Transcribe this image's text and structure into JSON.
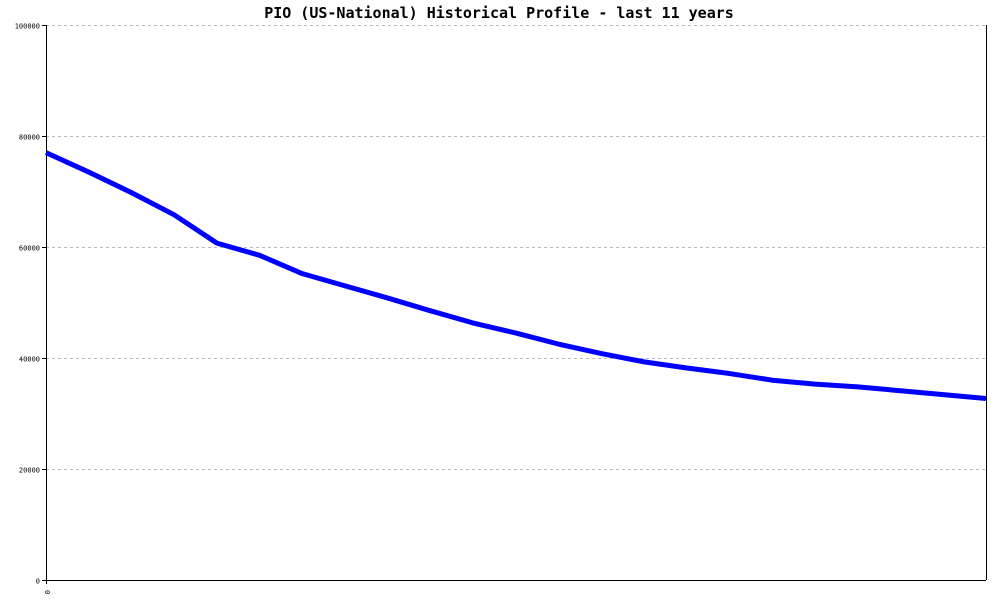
{
  "chart_data": {
    "type": "line",
    "title": "PIO (US-National) Historical Profile - last 11 years",
    "xlabel": "",
    "ylabel": "",
    "x_tick_labels": [
      "0"
    ],
    "ylim": [
      0,
      100000
    ],
    "y_ticks": [
      0,
      20000,
      40000,
      60000,
      80000,
      100000
    ],
    "y_tick_labels": [
      "0",
      "20000",
      "40000",
      "60000",
      "80000",
      "100000"
    ],
    "grid": true,
    "series": [
      {
        "values": [
          77000,
          73500,
          69800,
          65800,
          60700,
          58500,
          55200,
          53000,
          50800,
          48500,
          46300,
          44500,
          42500,
          40800,
          39300,
          38200,
          37200,
          36000,
          35300,
          34800,
          34100,
          33400,
          32700
        ],
        "color": "#0000ff"
      }
    ],
    "colors": {
      "line": "#0000ff",
      "axis": "#000000",
      "grid": "#bbbbbb",
      "background": "#ffffff"
    }
  }
}
